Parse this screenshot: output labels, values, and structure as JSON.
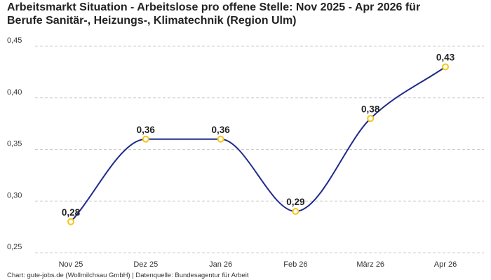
{
  "title_lines": [
    "Arbeitsmarkt Situation - Arbeitslose pro offene Stelle: Nov 2025 - Apr 2026 für",
    "Berufe Sanitär-, Heizungs-, Klimatechnik (Region Ulm)"
  ],
  "footer": "Chart: gute-jobs.de (Wollmilchsau GmbH) | Datenquelle: Bundesagentur für Arbeit",
  "colors": {
    "line": "#1f2b8c",
    "marker": "#f5c518",
    "grid": "#cccccc"
  },
  "chart_data": {
    "type": "line",
    "categories": [
      "Nov 25",
      "Dez 25",
      "Jan 26",
      "Feb 26",
      "März 26",
      "Apr 26"
    ],
    "series": [
      {
        "values": [
          0.28,
          0.36,
          0.36,
          0.29,
          0.38,
          0.43
        ]
      }
    ],
    "data_labels": [
      "0,28",
      "0,36",
      "0,36",
      "0,29",
      "0,38",
      "0,43"
    ],
    "ylim": [
      0.25,
      0.45
    ],
    "yticks": [
      0.25,
      0.3,
      0.35,
      0.4,
      0.45
    ],
    "ytick_labels": [
      "0,25",
      "0,30",
      "0,35",
      "0,40",
      "0,45"
    ],
    "grid": "horizontal-dashed",
    "legend": "none",
    "curve": "smooth"
  }
}
